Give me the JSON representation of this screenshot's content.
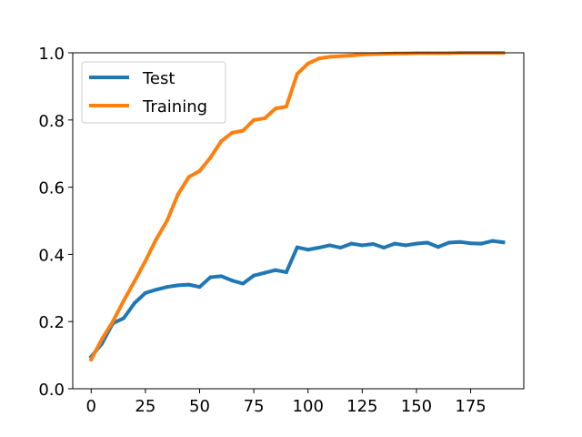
{
  "chart_data": {
    "type": "line",
    "title": "",
    "xlabel": "",
    "ylabel": "",
    "xlim": [
      -8.5,
      199.5
    ],
    "ylim": [
      0.0,
      1.0
    ],
    "grid": false,
    "legend_position": "top-left",
    "x_ticks": [
      0,
      25,
      50,
      75,
      100,
      125,
      150,
      175
    ],
    "x_tick_labels": [
      "0",
      "25",
      "50",
      "75",
      "100",
      "125",
      "150",
      "175"
    ],
    "y_ticks": [
      0.0,
      0.2,
      0.4,
      0.6,
      0.8,
      1.0
    ],
    "y_tick_labels": [
      "0.0",
      "0.2",
      "0.4",
      "0.6",
      "0.8",
      "1.0"
    ],
    "x": [
      0,
      5,
      10,
      15,
      20,
      25,
      30,
      35,
      40,
      45,
      50,
      55,
      60,
      65,
      70,
      75,
      80,
      85,
      90,
      95,
      100,
      105,
      110,
      115,
      120,
      125,
      130,
      135,
      140,
      145,
      150,
      155,
      160,
      165,
      170,
      175,
      180,
      185,
      190
    ],
    "series": [
      {
        "name": "Test",
        "color": "#1f77b4",
        "values": [
          0.095,
          0.135,
          0.195,
          0.21,
          0.255,
          0.285,
          0.295,
          0.303,
          0.308,
          0.31,
          0.303,
          0.332,
          0.335,
          0.322,
          0.313,
          0.337,
          0.345,
          0.353,
          0.347,
          0.421,
          0.414,
          0.42,
          0.427,
          0.42,
          0.432,
          0.427,
          0.431,
          0.42,
          0.432,
          0.427,
          0.432,
          0.435,
          0.422,
          0.435,
          0.437,
          0.433,
          0.432,
          0.44,
          0.436
        ]
      },
      {
        "name": "Training",
        "color": "#ff7f0e",
        "values": [
          0.087,
          0.148,
          0.2,
          0.262,
          0.32,
          0.38,
          0.445,
          0.5,
          0.578,
          0.63,
          0.648,
          0.688,
          0.737,
          0.762,
          0.768,
          0.8,
          0.805,
          0.834,
          0.84,
          0.937,
          0.968,
          0.983,
          0.988,
          0.99,
          0.992,
          0.995,
          0.996,
          0.997,
          0.998,
          0.998,
          0.999,
          0.999,
          0.999,
          0.999,
          1.0,
          1.0,
          1.0,
          1.0,
          1.0
        ]
      }
    ]
  }
}
